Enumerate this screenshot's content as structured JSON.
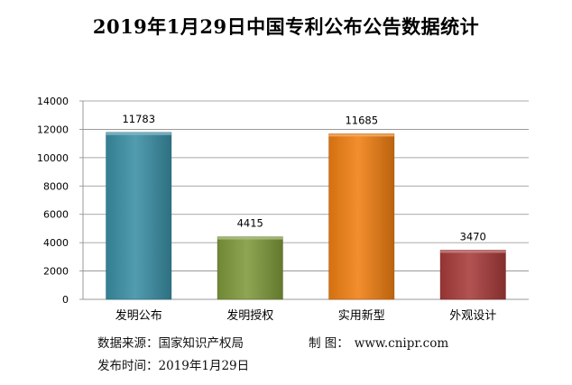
{
  "chart_data": {
    "type": "bar",
    "title": "2019年1月29日中国专利公布公告数据统计",
    "categories": [
      "发明公布",
      "发明授权",
      "实用新型",
      "外观设计"
    ],
    "values": [
      11783,
      4415,
      11685,
      3470
    ],
    "value_labels": [
      "11783",
      "4415",
      "11685",
      "3470"
    ],
    "colors": [
      "#3a8fa5",
      "#7f9a3b",
      "#f07f12",
      "#a83b3a"
    ],
    "ylim": [
      0,
      14000
    ],
    "yticks": [
      0,
      2000,
      4000,
      6000,
      8000,
      10000,
      12000,
      14000
    ],
    "ytick_labels": [
      "0",
      "2000",
      "4000",
      "6000",
      "8000",
      "10000",
      "12000",
      "14000"
    ],
    "grid": true,
    "xlabel": "",
    "ylabel": ""
  },
  "footer": {
    "source_label": "数据来源：",
    "source_value": "国家知识产权局",
    "maker_label": "制  图：",
    "maker_value": "www.cnipr.com",
    "date_label": "发布时间：",
    "date_value": "2019年1月29日"
  }
}
